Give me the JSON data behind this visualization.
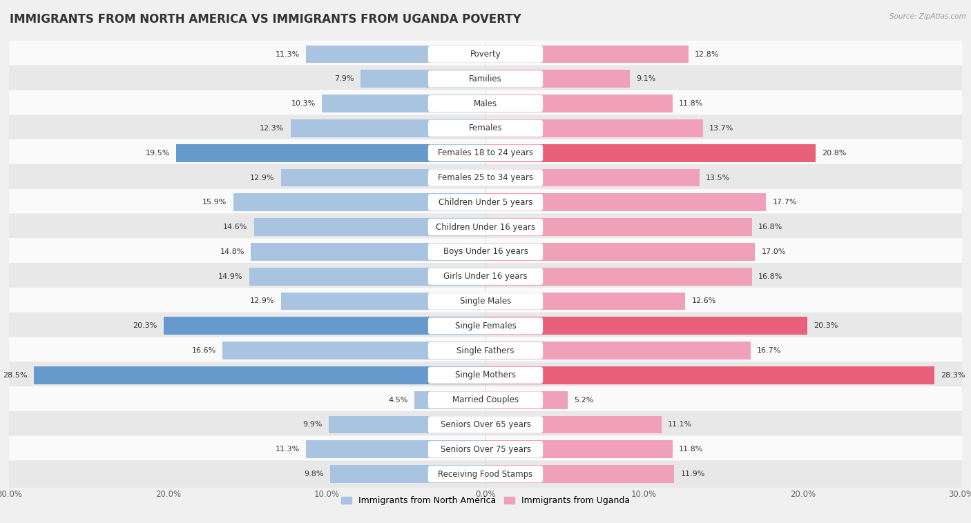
{
  "title": "IMMIGRANTS FROM NORTH AMERICA VS IMMIGRANTS FROM UGANDA POVERTY",
  "source": "Source: ZipAtlas.com",
  "categories": [
    "Poverty",
    "Families",
    "Males",
    "Females",
    "Females 18 to 24 years",
    "Females 25 to 34 years",
    "Children Under 5 years",
    "Children Under 16 years",
    "Boys Under 16 years",
    "Girls Under 16 years",
    "Single Males",
    "Single Females",
    "Single Fathers",
    "Single Mothers",
    "Married Couples",
    "Seniors Over 65 years",
    "Seniors Over 75 years",
    "Receiving Food Stamps"
  ],
  "north_america": [
    11.3,
    7.9,
    10.3,
    12.3,
    19.5,
    12.9,
    15.9,
    14.6,
    14.8,
    14.9,
    12.9,
    20.3,
    16.6,
    28.5,
    4.5,
    9.9,
    11.3,
    9.8
  ],
  "uganda": [
    12.8,
    9.1,
    11.8,
    13.7,
    20.8,
    13.5,
    17.7,
    16.8,
    17.0,
    16.8,
    12.6,
    20.3,
    16.7,
    28.3,
    5.2,
    11.1,
    11.8,
    11.9
  ],
  "north_america_color": "#a8c4e0",
  "uganda_color": "#f0a0b8",
  "north_america_highlight_color": "#6699cc",
  "uganda_highlight_color": "#e8607a",
  "highlight_rows": [
    4,
    11,
    13
  ],
  "background_color": "#f0f0f0",
  "row_bg_light": "#fafafa",
  "row_bg_dark": "#e8e8e8",
  "xlim": 30.0,
  "legend_label_na": "Immigrants from North America",
  "legend_label_ug": "Immigrants from Uganda",
  "title_fontsize": 12,
  "label_fontsize": 8.5,
  "value_fontsize": 8
}
